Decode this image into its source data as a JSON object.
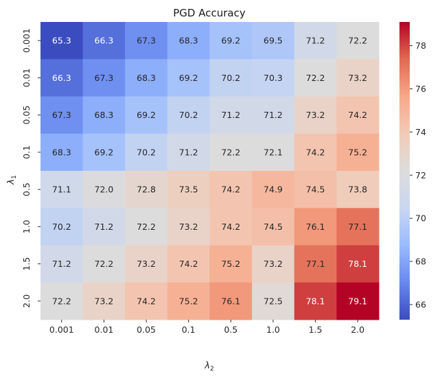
{
  "chart_data": {
    "type": "heatmap",
    "title": "PGD Accuracy",
    "xlabel_symbol": "λ",
    "xlabel_sub": "2",
    "ylabel_symbol": "λ",
    "ylabel_sub": "1",
    "x_categories": [
      "0.001",
      "0.01",
      "0.05",
      "0.1",
      "0.5",
      "1.0",
      "1.5",
      "2.0"
    ],
    "y_categories": [
      "0.001",
      "0.01",
      "0.05",
      "0.1",
      "0.5",
      "1.0",
      "1.5",
      "2.0"
    ],
    "values": [
      [
        65.3,
        66.3,
        67.3,
        68.3,
        69.2,
        69.5,
        71.2,
        72.2
      ],
      [
        66.3,
        67.3,
        68.3,
        69.2,
        70.2,
        70.3,
        72.2,
        73.2
      ],
      [
        67.3,
        68.3,
        69.2,
        70.2,
        71.2,
        71.2,
        73.2,
        74.2
      ],
      [
        68.3,
        69.2,
        70.2,
        71.2,
        72.2,
        72.1,
        74.2,
        75.2
      ],
      [
        71.1,
        72.0,
        72.8,
        73.5,
        74.2,
        74.9,
        74.5,
        73.8
      ],
      [
        70.2,
        71.2,
        72.2,
        73.2,
        74.2,
        74.5,
        76.1,
        77.1
      ],
      [
        71.2,
        72.2,
        73.2,
        74.2,
        75.2,
        73.2,
        77.1,
        78.1
      ],
      [
        72.2,
        73.2,
        74.2,
        75.2,
        76.1,
        72.5,
        78.1,
        79.1
      ]
    ],
    "vmin": 65.3,
    "vmax": 79.1,
    "colormap": "coolwarm",
    "colormap_stops": [
      "#3b4cc0",
      "#6788ee",
      "#9abbff",
      "#c9d7f0",
      "#dddcdc",
      "#f2cbb7",
      "#f7a889",
      "#e26952",
      "#b40426"
    ],
    "colorbar_ticks": [
      66,
      68,
      70,
      72,
      74,
      76,
      78
    ],
    "annotation_colors": {
      "light": "#ffffff",
      "dark": "#262626"
    }
  }
}
